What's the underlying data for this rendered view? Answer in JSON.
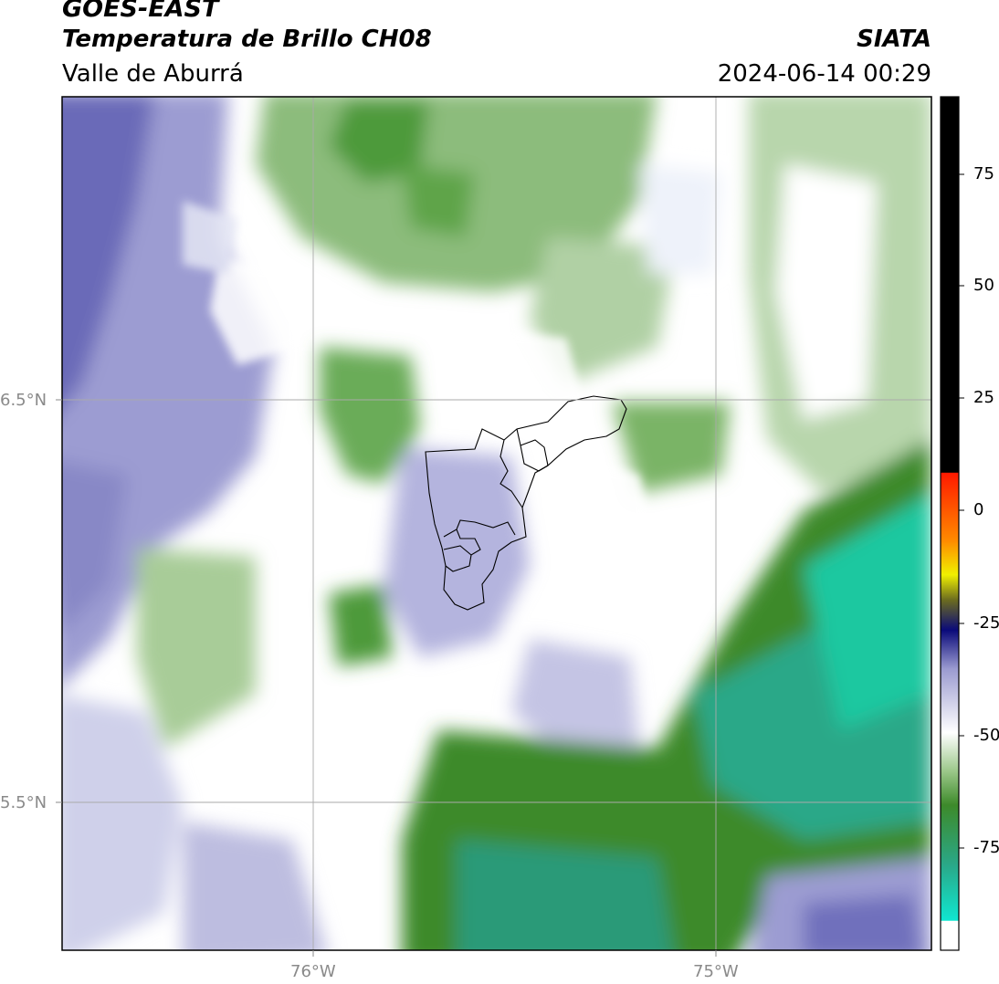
{
  "header": {
    "satellite": "GOES-EAST",
    "product": "Temperatura de Brillo CH08",
    "region": "Valle de Aburrá",
    "agency": "SIATA",
    "datetime": "2024-06-14 00:29"
  },
  "axes": {
    "lat_labels": [
      "6.5°N",
      "5.5°N"
    ],
    "lon_labels": [
      "76°W",
      "75°W"
    ]
  },
  "colorbar": {
    "ticks": [
      "75",
      "50",
      "25",
      "0",
      "-25",
      "-50",
      "-75"
    ],
    "colors": {
      "top": "#000000",
      "red": "#ff1a00",
      "orange": "#ff8a00",
      "yellow": "#f0f000",
      "olive": "#6a6a20",
      "navy": "#0a0a7a",
      "lavender": "#9a9ad0",
      "white": "#ffffff",
      "green": "#3d8a2a",
      "cyan": "#10e6d0"
    }
  },
  "map_colors": {
    "purple_dark": "#6a6ab8",
    "purple": "#9c9cd2",
    "purple_light": "#cfd0ea",
    "white": "#ffffff",
    "green_light": "#c4dcbc",
    "green": "#8cbc7c",
    "green_dark": "#3e8a2c",
    "teal": "#2aa888",
    "teal_light": "#1cc8a0",
    "boundary": "#000000",
    "grid": "#aaaaaa"
  }
}
